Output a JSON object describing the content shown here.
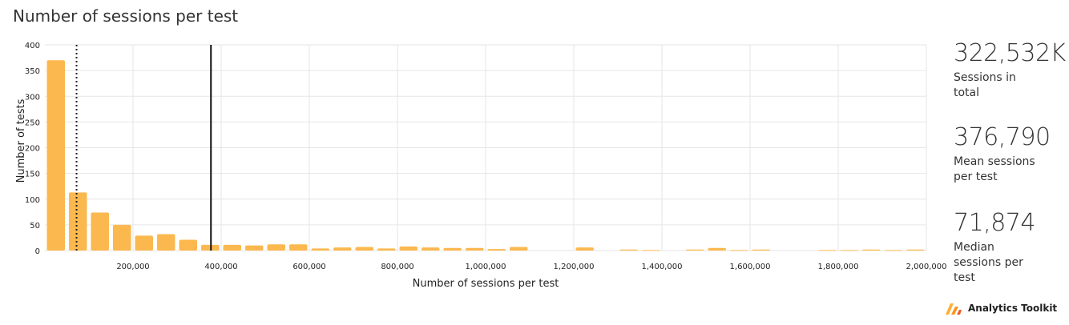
{
  "title": "Number of sessions per test",
  "stats": [
    {
      "value": "322,532K",
      "label": "Sessions in total"
    },
    {
      "value": "376,790",
      "label": "Mean sessions per test"
    },
    {
      "value": "71,874",
      "label": "Median sessions per test"
    }
  ],
  "brand": {
    "name": "Analytics Toolkit",
    "icon": "analytics-toolkit-logo-icon"
  },
  "colors": {
    "bar": "#fbb84f",
    "grid": "#e6e6e6",
    "median_line": "#222222",
    "mean_line": "#111111"
  },
  "chart_data": {
    "type": "bar",
    "xlabel": "Number of sessions per test",
    "ylabel": "Number of tests",
    "xlim": [
      0,
      2000000
    ],
    "ylim": [
      0,
      400
    ],
    "bin_width": 50000,
    "yticks": [
      0,
      50,
      100,
      150,
      200,
      250,
      300,
      350,
      400
    ],
    "xticks": [
      200000,
      400000,
      600000,
      800000,
      1000000,
      1200000,
      1400000,
      1600000,
      1800000,
      2000000
    ],
    "xtick_labels": [
      "200,000",
      "400,000",
      "600,000",
      "800,000",
      "1,000,000",
      "1,200,000",
      "1,400,000",
      "1,600,000",
      "1,800,000",
      "2,000,000"
    ],
    "bins_start": [
      0,
      50000,
      100000,
      150000,
      200000,
      250000,
      300000,
      350000,
      400000,
      450000,
      500000,
      550000,
      600000,
      650000,
      700000,
      750000,
      800000,
      850000,
      900000,
      950000,
      1000000,
      1050000,
      1100000,
      1150000,
      1200000,
      1250000,
      1300000,
      1350000,
      1400000,
      1450000,
      1500000,
      1550000,
      1600000,
      1650000,
      1700000,
      1750000,
      1800000,
      1850000,
      1900000,
      1950000
    ],
    "values": [
      370,
      113,
      74,
      50,
      29,
      32,
      21,
      11,
      11,
      10,
      12,
      12,
      4,
      6,
      7,
      4,
      8,
      6,
      5,
      5,
      3,
      7,
      0,
      0,
      6,
      0,
      2,
      1,
      0,
      2,
      5,
      1,
      2,
      0,
      0,
      1,
      1,
      2,
      1,
      2
    ],
    "reference_lines": [
      {
        "name": "Median",
        "x": 71874,
        "style": "dotted"
      },
      {
        "name": "Mean",
        "x": 376790,
        "style": "solid"
      }
    ],
    "grid": true
  }
}
